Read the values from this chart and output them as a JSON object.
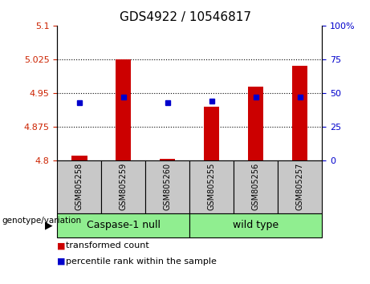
{
  "title": "GDS4922 / 10546817",
  "samples": [
    "GSM805258",
    "GSM805259",
    "GSM805260",
    "GSM805255",
    "GSM805256",
    "GSM805257"
  ],
  "transformed_counts": [
    4.81,
    5.025,
    4.803,
    4.92,
    4.965,
    5.01
  ],
  "percentile_ranks": [
    43,
    47,
    43,
    44,
    47,
    47
  ],
  "ylim_left": [
    4.8,
    5.1
  ],
  "ylim_right": [
    0,
    100
  ],
  "yticks_left": [
    4.8,
    4.875,
    4.95,
    5.025,
    5.1
  ],
  "yticks_right": [
    0,
    25,
    50,
    75,
    100
  ],
  "bar_color": "#CC0000",
  "dot_color": "#0000CC",
  "bar_width": 0.35,
  "left_tick_color": "#CC2200",
  "right_tick_color": "#0000CC",
  "xlabel": "genotype/variation",
  "legend_items": [
    "transformed count",
    "percentile rank within the sample"
  ],
  "group_info": [
    {
      "label": "Caspase-1 null",
      "start": 0,
      "end": 2,
      "color": "#90EE90"
    },
    {
      "label": "wild type",
      "start": 3,
      "end": 5,
      "color": "#90EE90"
    }
  ],
  "sample_bg_color": "#C8C8C8",
  "title_fontsize": 11,
  "tick_fontsize": 8,
  "sample_fontsize": 7,
  "group_fontsize": 9,
  "legend_fontsize": 8
}
